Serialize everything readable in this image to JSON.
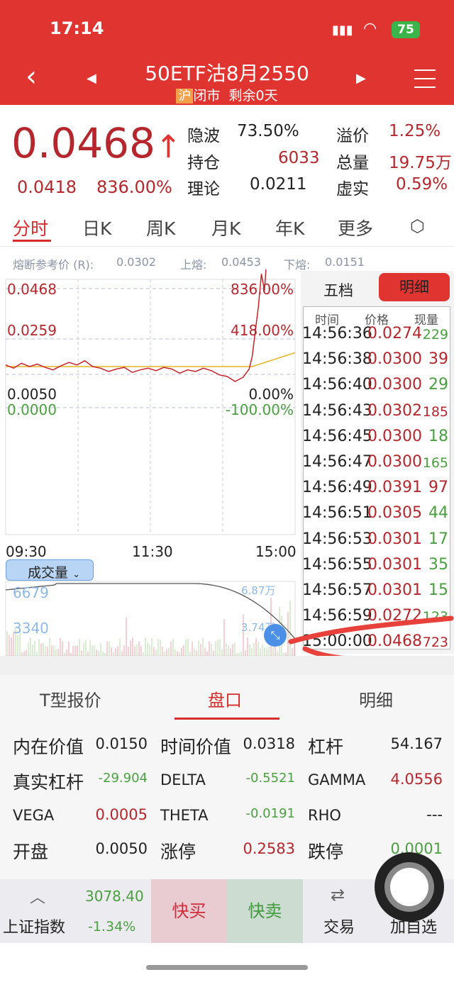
{
  "status": {
    "time": "17:14",
    "battery": "75"
  },
  "header": {
    "title": "50ETF沽8月2550",
    "exchange": "沪",
    "market_state": "闭市",
    "remaining": "剩余0天"
  },
  "quote": {
    "price": "0.0468",
    "change": "0.0418",
    "change_pct": "836.00%",
    "stats": [
      {
        "label": "隐波",
        "value": "73.50%"
      },
      {
        "label": "溢价",
        "value": "1.25%"
      },
      {
        "label": "持仓",
        "value": "6033"
      },
      {
        "label": "总量",
        "value": "19.75万"
      },
      {
        "label": "理论",
        "value": "0.0211"
      },
      {
        "label": "虚实",
        "value": "0.59%"
      }
    ]
  },
  "chart_tabs": [
    "分时",
    "日K",
    "周K",
    "月K",
    "年K",
    "更多"
  ],
  "fuse": {
    "ref_label": "熔断参考价 (R):",
    "ref": "0.0302",
    "up_label": "上熔:",
    "up": "0.0453",
    "down_label": "下熔:",
    "down": "0.0151"
  },
  "chart": {
    "y_labels_left": [
      "0.0468",
      "0.0259",
      "0.0050",
      "0.0000"
    ],
    "y_labels_right": [
      "836.00%",
      "418.00%",
      "0.00%",
      "-100.00%"
    ],
    "x_labels": [
      "09:30",
      "11:30",
      "15:00"
    ],
    "price_series": [
      0.005,
      0.0046,
      0.0052,
      0.0048,
      0.0051,
      0.0047,
      0.0044,
      0.0049,
      0.0053,
      0.005,
      0.0055,
      0.0048,
      0.0046,
      0.0042,
      0.0045,
      0.0047,
      0.0041,
      0.0044,
      0.0046,
      0.0043,
      0.0047,
      0.0045,
      0.004,
      0.0044,
      0.0042,
      0.0046,
      0.0043,
      0.0038,
      0.0036,
      0.003,
      0.0035,
      0.004,
      0.0045,
      0.006,
      0.009,
      0.012,
      0.016,
      0.014,
      0.019,
      0.022,
      0.018,
      0.026,
      0.03,
      0.0274,
      0.0302,
      0.0391,
      0.03,
      0.0468
    ],
    "avg_color": "#e6b422",
    "price_color": "#c8232c"
  },
  "volume": {
    "selector": "成交量",
    "left_labels": [
      "6679",
      "3340"
    ],
    "right_labels": [
      "6.87万",
      "3.74万"
    ]
  },
  "detail_tabs": {
    "five": "五档",
    "detail": "明细"
  },
  "detail_head": [
    "时间",
    "价格",
    "现量"
  ],
  "trades": [
    {
      "t": "14:56:36",
      "p": "0.0274",
      "q": "229",
      "c": "green"
    },
    {
      "t": "14:56:38",
      "p": "0.0300",
      "q": "39",
      "c": "red"
    },
    {
      "t": "14:56:40",
      "p": "0.0300",
      "q": "29",
      "c": "green"
    },
    {
      "t": "14:56:43",
      "p": "0.0302",
      "q": "185",
      "c": "red"
    },
    {
      "t": "14:56:45",
      "p": "0.0300",
      "q": "18",
      "c": "green"
    },
    {
      "t": "14:56:47",
      "p": "0.0300",
      "q": "165",
      "c": "green"
    },
    {
      "t": "14:56:49",
      "p": "0.0391",
      "q": "97",
      "c": "red"
    },
    {
      "t": "14:56:51",
      "p": "0.0305",
      "q": "44",
      "c": "green"
    },
    {
      "t": "14:56:53",
      "p": "0.0301",
      "q": "17",
      "c": "green"
    },
    {
      "t": "14:56:55",
      "p": "0.0301",
      "q": "35",
      "c": "green"
    },
    {
      "t": "14:56:57",
      "p": "0.0301",
      "q": "15",
      "c": "green"
    },
    {
      "t": "14:56:59",
      "p": "0.0272",
      "q": "123",
      "c": "green"
    },
    {
      "t": "15:00:00",
      "p": "0.0468",
      "q": "723",
      "c": "red"
    }
  ],
  "bottom_tabs": [
    "T型报价",
    "盘口",
    "明细"
  ],
  "greeks": [
    [
      {
        "l": "内在价值",
        "v": "0.0150",
        "c": "blk"
      },
      {
        "l": "时间价值",
        "v": "0.0318",
        "c": "blk"
      },
      {
        "l": "杠杆",
        "v": "54.167",
        "c": "blk"
      }
    ],
    [
      {
        "l": "真实杠杆",
        "v": "-29.904",
        "c": "green"
      },
      {
        "l": "DELTA",
        "v": "-0.5521",
        "c": "green"
      },
      {
        "l": "GAMMA",
        "v": "4.0556",
        "c": "red"
      }
    ],
    [
      {
        "l": "VEGA",
        "v": "0.0005",
        "c": "red"
      },
      {
        "l": "THETA",
        "v": "-0.0191",
        "c": "green"
      },
      {
        "l": "RHO",
        "v": "---",
        "c": "blk"
      }
    ],
    [
      {
        "l": "开盘",
        "v": "0.0050",
        "c": "blk"
      },
      {
        "l": "涨停",
        "v": "0.2583",
        "c": "red"
      },
      {
        "l": "跌停",
        "v": "0.0001",
        "c": "green"
      }
    ]
  ],
  "footer": {
    "index_name": "上证指数",
    "index_value": "3078.40",
    "index_change": "-1.34%",
    "buy": "快买",
    "sell": "快卖",
    "trade": "交易",
    "watch": "加自选"
  }
}
